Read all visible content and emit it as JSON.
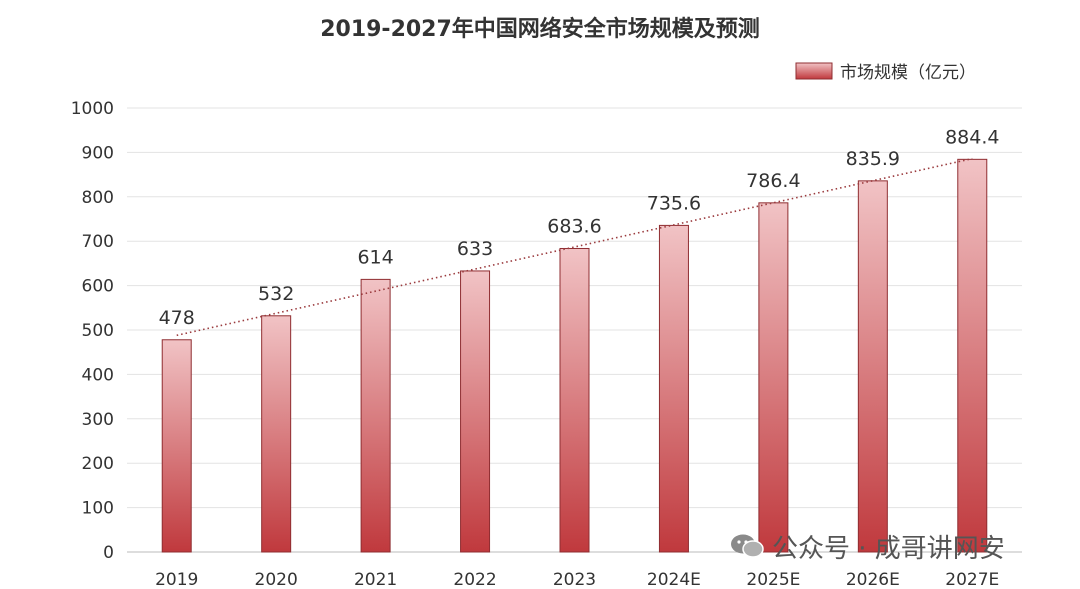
{
  "chart_data": {
    "type": "bar",
    "title": "2019-2027年中国网络安全市场规模及预测",
    "categories": [
      "2019",
      "2020",
      "2021",
      "2022",
      "2023",
      "2024E",
      "2025E",
      "2026E",
      "2027E"
    ],
    "series": [
      {
        "name": "市场规模（亿元）",
        "values": [
          478,
          532,
          614,
          633,
          683.6,
          735.6,
          786.4,
          835.9,
          884.4
        ]
      }
    ],
    "value_labels": [
      "478",
      "532",
      "614",
      "633",
      "683.6",
      "735.6",
      "786.4",
      "835.9",
      "884.4"
    ],
    "ylim": [
      0,
      1000
    ],
    "yticks": [
      0,
      100,
      200,
      300,
      400,
      500,
      600,
      700,
      800,
      900,
      1000
    ],
    "trendline": "dotted linear",
    "grid": true,
    "legend": "top-right",
    "xlabel": "",
    "ylabel": "",
    "colors": {
      "bar_top": "#f1c3c5",
      "bar_bottom": "#c0393d",
      "bar_stroke": "#8f2d31",
      "trend": "#9b3b3e",
      "grid": "#e3e3e3",
      "text": "#333333"
    }
  },
  "watermark": {
    "text": "公众号 · 成哥讲网安",
    "icon": "wechat-icon"
  }
}
